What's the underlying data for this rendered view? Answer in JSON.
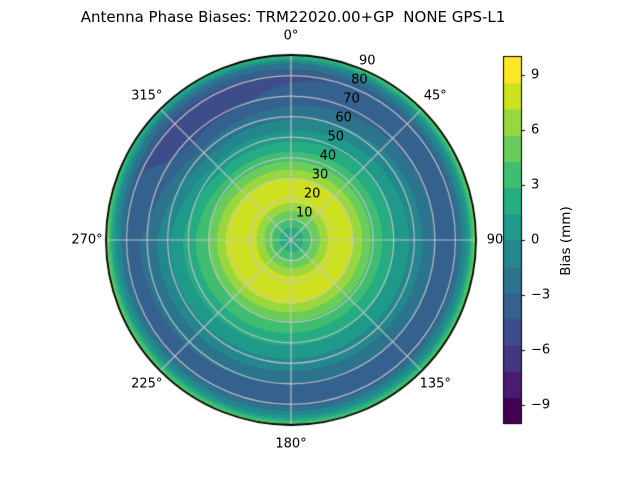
{
  "chart_data": {
    "type": "heatmap",
    "projection": "polar",
    "title": "Antenna Phase Biases: TRM22020.00+GP  NONE GPS-L1",
    "azimuth_tick_labels": [
      "0°",
      "45°",
      "90",
      "135°",
      "180°",
      "225°",
      "270°",
      "315°"
    ],
    "azimuth_tick_deg": [
      0,
      45,
      90,
      135,
      180,
      225,
      270,
      315
    ],
    "zenith_tick_labels": [
      "10",
      "20",
      "30",
      "40",
      "50",
      "60",
      "70",
      "80",
      "90"
    ],
    "zenith_tick_deg": [
      10,
      20,
      30,
      40,
      50,
      60,
      70,
      80,
      90
    ],
    "zenith_range_deg": [
      0,
      90
    ],
    "grid": {
      "azimuth_deg": [
        0,
        45,
        90,
        135,
        180,
        225,
        270,
        315
      ],
      "zenith_deg": [
        0,
        10,
        20,
        30,
        40,
        50,
        60,
        70,
        80,
        86,
        90
      ],
      "values_mm": [
        [
          0.7,
          4.2,
          7.8,
          7.2,
          3.7,
          0.8,
          -1.8,
          -3.9,
          -4.5,
          -1.5,
          4.2
        ],
        [
          0.7,
          4.2,
          7.8,
          7.2,
          3.8,
          1.3,
          -0.9,
          -3.2,
          -4.0,
          -0.2,
          5.0
        ],
        [
          0.7,
          4.3,
          7.9,
          7.3,
          3.9,
          1.5,
          -0.5,
          -2.8,
          -3.6,
          0.6,
          6.0
        ],
        [
          0.7,
          4.3,
          7.9,
          7.3,
          3.9,
          1.5,
          -0.6,
          -3.0,
          -3.8,
          0.2,
          4.8
        ],
        [
          0.7,
          4.4,
          8.0,
          7.5,
          4.1,
          1.7,
          -0.5,
          -2.9,
          -3.6,
          0.4,
          5.0
        ],
        [
          0.7,
          4.6,
          8.2,
          7.7,
          4.3,
          1.9,
          -0.3,
          -2.7,
          -3.4,
          0.6,
          5.4
        ],
        [
          0.7,
          4.7,
          8.3,
          7.8,
          4.4,
          2.0,
          -0.2,
          -2.6,
          -3.3,
          1.0,
          6.0
        ],
        [
          0.7,
          4.4,
          8.1,
          7.4,
          3.8,
          0.6,
          -2.4,
          -4.9,
          -5.2,
          -2.0,
          3.0
        ]
      ]
    },
    "levels": {
      "min": -10,
      "max": 10,
      "n_bands": 14
    },
    "colorbar": {
      "label": "Bias (mm)",
      "ticks": [
        9,
        6,
        3,
        0,
        -3,
        -6,
        -9
      ],
      "tick_labels": [
        "9",
        "6",
        "3",
        "0",
        "−3",
        "−6",
        "−9"
      ]
    },
    "colormap": {
      "name": "viridis",
      "anchors": [
        "#440154",
        "#471365",
        "#482475",
        "#463480",
        "#414487",
        "#3b528b",
        "#355f8d",
        "#2f6c8e",
        "#2a788e",
        "#25848e",
        "#21918c",
        "#1e9c89",
        "#22a884",
        "#2fb47c",
        "#44bf70",
        "#5ec962",
        "#7ad151",
        "#9bd93c",
        "#bddf26",
        "#dfe318",
        "#fde725"
      ]
    },
    "grid_color": "#c6c6c6",
    "outline_color": "#000000",
    "background_color": "#ffffff"
  }
}
